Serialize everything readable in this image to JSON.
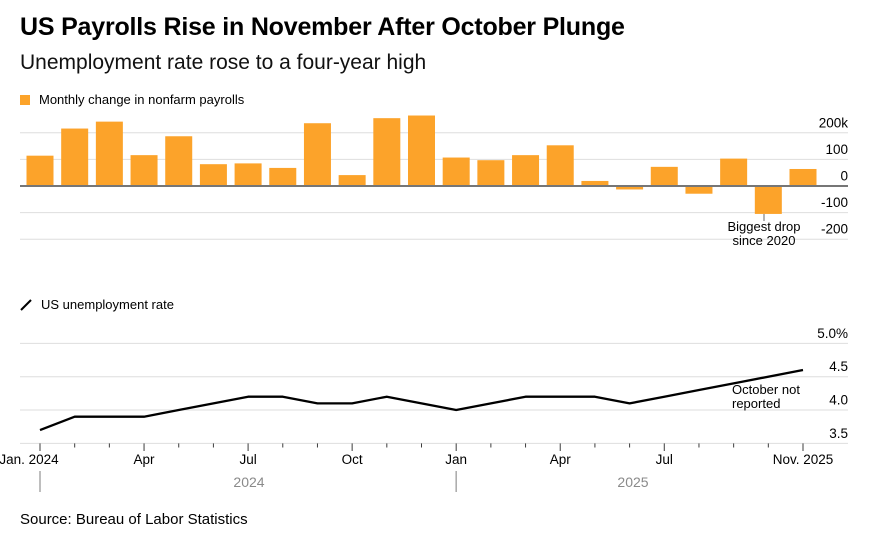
{
  "header": {
    "title": "US Payrolls Rise in November After October Plunge",
    "subtitle": "Unemployment rate rose to a four-year high"
  },
  "source": "Source: Bureau of Labor Statistics",
  "colors": {
    "bar": "#FCA32A",
    "line": "#000000",
    "grid": "#DEDEDE",
    "zero_line": "#767676",
    "axis_tick": "#3C3C3C",
    "year_label": "#8A8A8A",
    "year_divider": "#A9A9A9",
    "annotation_tick": "#9B9B9B",
    "annotation_text": "#000000",
    "tick_label": "#000000"
  },
  "x_axis": {
    "tick_labels": [
      {
        "index": 0,
        "label": "Jan. 2024"
      },
      {
        "index": 3,
        "label": "Apr"
      },
      {
        "index": 6,
        "label": "Jul"
      },
      {
        "index": 9,
        "label": "Oct"
      },
      {
        "index": 12,
        "label": "Jan"
      },
      {
        "index": 15,
        "label": "Apr"
      },
      {
        "index": 18,
        "label": "Jul"
      },
      {
        "index": 22,
        "label": "Nov. 2025"
      }
    ],
    "year_labels": [
      "2024",
      "2025"
    ]
  },
  "chart_data": [
    {
      "type": "bar",
      "title": "Monthly change in nonfarm payrolls",
      "unit": "thousands of jobs",
      "categories": [
        "Jan. 2024",
        "Feb. 2024",
        "Mar. 2024",
        "Apr. 2024",
        "May 2024",
        "Jun. 2024",
        "Jul. 2024",
        "Aug. 2024",
        "Sep. 2024",
        "Oct. 2024",
        "Nov. 2024",
        "Dec. 2024",
        "Jan. 2025",
        "Feb. 2025",
        "Mar. 2025",
        "Apr. 2025",
        "May 2025",
        "Jun. 2025",
        "Jul. 2025",
        "Aug. 2025",
        "Sep. 2025",
        "Oct. 2025",
        "Nov. 2025"
      ],
      "values": [
        114,
        216,
        242,
        116,
        187,
        82,
        85,
        68,
        236,
        41,
        255,
        265,
        107,
        97,
        116,
        153,
        19,
        -13,
        72,
        -29,
        103,
        -105,
        64
      ],
      "ylim": [
        -250,
        285
      ],
      "grid": true,
      "yticks": [
        {
          "label": "200k",
          "value": 200
        },
        {
          "label": "100",
          "value": 100
        },
        {
          "label": "0",
          "value": 0
        },
        {
          "label": "-100",
          "value": -100
        },
        {
          "label": "-200",
          "value": -200
        }
      ],
      "annotation": {
        "line1": "Biggest drop",
        "line2": "since 2020",
        "target_category": "Oct. 2025"
      }
    },
    {
      "type": "line",
      "title": "US unemployment rate",
      "unit": "percent",
      "categories": [
        "Jan. 2024",
        "Feb. 2024",
        "Mar. 2024",
        "Apr. 2024",
        "May 2024",
        "Jun. 2024",
        "Jul. 2024",
        "Aug. 2024",
        "Sep. 2024",
        "Oct. 2024",
        "Nov. 2024",
        "Dec. 2024",
        "Jan. 2025",
        "Feb. 2025",
        "Mar. 2025",
        "Apr. 2025",
        "May 2025",
        "Jun. 2025",
        "Jul. 2025",
        "Aug. 2025",
        "Sep. 2025",
        "Oct. 2025",
        "Nov. 2025"
      ],
      "values": [
        3.7,
        3.9,
        3.9,
        3.9,
        4.0,
        4.1,
        4.2,
        4.2,
        4.1,
        4.1,
        4.2,
        4.1,
        4.0,
        4.1,
        4.2,
        4.2,
        4.2,
        4.1,
        4.2,
        4.3,
        4.4,
        null,
        4.6
      ],
      "ylim": [
        3.4,
        5.1
      ],
      "grid": true,
      "yticks": [
        {
          "label": "5.0%",
          "value": 5.0
        },
        {
          "label": "4.5",
          "value": 4.5
        },
        {
          "label": "4.0",
          "value": 4.0
        },
        {
          "label": "3.5",
          "value": 3.5
        }
      ],
      "annotation": {
        "line1": "October not",
        "line2": "reported",
        "target_category": "Oct. 2025"
      }
    }
  ]
}
